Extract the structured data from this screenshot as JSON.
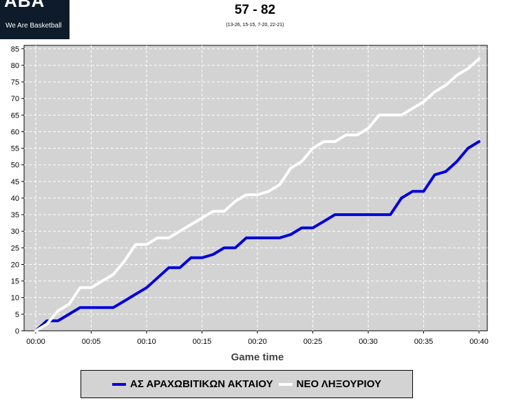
{
  "logo": {
    "mark": "ABA",
    "tagline": "We Are Basketball"
  },
  "header": {
    "score": "57 - 82",
    "quarters": "(13-26, 15-15, 7-20, 22-21)"
  },
  "colors": {
    "plot_bg": "#d3d3d3",
    "team1": "#0000dd",
    "team2": "#ffffff",
    "grid": "#ffffff"
  },
  "chart_data": {
    "type": "line",
    "title": "57 - 82",
    "subtitle": "(13-26, 15-15, 7-20, 22-21)",
    "xlabel": "Game time",
    "ylabel": "",
    "xlim": [
      0,
      40
    ],
    "ylim": [
      0,
      86
    ],
    "x_ticks": [
      0,
      5,
      10,
      15,
      20,
      25,
      30,
      35,
      40
    ],
    "x_tick_labels": [
      "00:00",
      "00:05",
      "00:10",
      "00:15",
      "00:20",
      "00:25",
      "00:30",
      "00:35",
      "00:40"
    ],
    "y_ticks": [
      0,
      5,
      10,
      15,
      20,
      25,
      30,
      35,
      40,
      45,
      50,
      55,
      60,
      65,
      70,
      75,
      80,
      85
    ],
    "grid": true,
    "legend_position": "bottom",
    "series": [
      {
        "name": "ΑΣ ΑΡΑΧΩΒΙΤΙΚΩΝ ΑΚΤΑΙΟΥ",
        "color": "#0000dd",
        "points": [
          [
            0,
            0
          ],
          [
            1,
            3
          ],
          [
            2,
            3
          ],
          [
            3,
            5
          ],
          [
            4,
            7
          ],
          [
            5,
            7
          ],
          [
            6,
            7
          ],
          [
            7,
            7
          ],
          [
            8,
            9
          ],
          [
            9,
            11
          ],
          [
            10,
            13
          ],
          [
            11,
            16
          ],
          [
            12,
            19
          ],
          [
            13,
            19
          ],
          [
            14,
            22
          ],
          [
            15,
            22
          ],
          [
            16,
            23
          ],
          [
            17,
            25
          ],
          [
            18,
            25
          ],
          [
            19,
            28
          ],
          [
            20,
            28
          ],
          [
            21,
            28
          ],
          [
            22,
            28
          ],
          [
            23,
            29
          ],
          [
            24,
            31
          ],
          [
            25,
            31
          ],
          [
            26,
            33
          ],
          [
            27,
            35
          ],
          [
            28,
            35
          ],
          [
            29,
            35
          ],
          [
            30,
            35
          ],
          [
            31,
            35
          ],
          [
            32,
            35
          ],
          [
            33,
            40
          ],
          [
            34,
            42
          ],
          [
            35,
            42
          ],
          [
            36,
            47
          ],
          [
            37,
            48
          ],
          [
            38,
            51
          ],
          [
            39,
            55
          ],
          [
            40,
            57
          ]
        ]
      },
      {
        "name": "ΝΕΟ ΛΗΞΟΥΡΙΟΥ",
        "color": "#ffffff",
        "points": [
          [
            0,
            0
          ],
          [
            1,
            2
          ],
          [
            2,
            6
          ],
          [
            3,
            8
          ],
          [
            4,
            13
          ],
          [
            5,
            13
          ],
          [
            6,
            15
          ],
          [
            7,
            17
          ],
          [
            8,
            21
          ],
          [
            9,
            26
          ],
          [
            10,
            26
          ],
          [
            11,
            28
          ],
          [
            12,
            28
          ],
          [
            13,
            30
          ],
          [
            14,
            32
          ],
          [
            15,
            34
          ],
          [
            16,
            36
          ],
          [
            17,
            36
          ],
          [
            18,
            39
          ],
          [
            19,
            41
          ],
          [
            20,
            41
          ],
          [
            21,
            42
          ],
          [
            22,
            44
          ],
          [
            23,
            49
          ],
          [
            24,
            51
          ],
          [
            25,
            55
          ],
          [
            26,
            57
          ],
          [
            27,
            57
          ],
          [
            28,
            59
          ],
          [
            29,
            59
          ],
          [
            30,
            61
          ],
          [
            31,
            65
          ],
          [
            32,
            65
          ],
          [
            33,
            65
          ],
          [
            34,
            67
          ],
          [
            35,
            69
          ],
          [
            36,
            72
          ],
          [
            37,
            74
          ],
          [
            38,
            77
          ],
          [
            39,
            79
          ],
          [
            40,
            82
          ]
        ]
      }
    ]
  }
}
